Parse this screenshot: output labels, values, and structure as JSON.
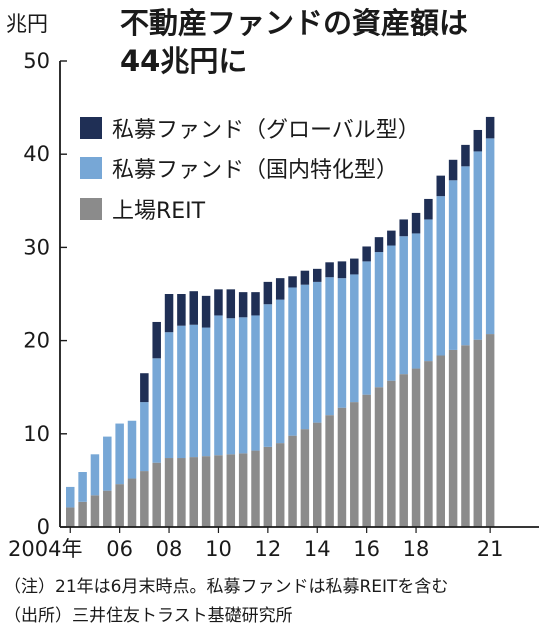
{
  "chart_data": {
    "type": "bar",
    "stacked": true,
    "title_lines": [
      "不動産ファンドの資産額は",
      "44兆円に"
    ],
    "unit_label": "兆円",
    "y_ticks": [
      0,
      10,
      20,
      30,
      40,
      50
    ],
    "ylim": [
      0,
      50
    ],
    "x_tick_labels": [
      {
        "index": 0,
        "label": "2004年"
      },
      {
        "index": 4,
        "label": "06"
      },
      {
        "index": 8,
        "label": "08"
      },
      {
        "index": 12,
        "label": "10"
      },
      {
        "index": 16,
        "label": "12"
      },
      {
        "index": 20,
        "label": "14"
      },
      {
        "index": 24,
        "label": "16"
      },
      {
        "index": 28,
        "label": "18"
      },
      {
        "index": 34,
        "label": "21"
      }
    ],
    "categories": [
      "2004H1",
      "2004H2",
      "2005H1",
      "2005H2",
      "2006H1",
      "2006H2",
      "2007H1",
      "2007H2",
      "2008H1",
      "2008H2",
      "2009H1",
      "2009H2",
      "2010H1",
      "2010H2",
      "2011H1",
      "2011H2",
      "2012H1",
      "2012H2",
      "2013H1",
      "2013H2",
      "2014H1",
      "2014H2",
      "2015H1",
      "2015H2",
      "2016H1",
      "2016H2",
      "2017H1",
      "2017H2",
      "2018H1",
      "2018H2",
      "2019H1",
      "2019H2",
      "2020H1",
      "2020H2",
      "2021H1"
    ],
    "series": [
      {
        "name": "上場REIT",
        "color": "#8b8b8b",
        "values": [
          2.1,
          2.7,
          3.4,
          3.9,
          4.6,
          5.2,
          6.0,
          6.9,
          7.4,
          7.4,
          7.5,
          7.6,
          7.7,
          7.8,
          7.9,
          8.2,
          8.6,
          9.0,
          9.8,
          10.5,
          11.2,
          12.0,
          12.8,
          13.4,
          14.2,
          15.0,
          15.7,
          16.4,
          17.0,
          17.8,
          18.4,
          19.0,
          19.5,
          20.1,
          20.7
        ]
      },
      {
        "name": "私募ファンド（国内特化型）",
        "color": "#77a7d6",
        "values": [
          2.2,
          3.2,
          4.4,
          5.8,
          6.5,
          6.2,
          7.4,
          11.2,
          13.5,
          14.2,
          14.2,
          13.8,
          15.0,
          14.6,
          14.6,
          14.5,
          15.3,
          15.4,
          15.9,
          15.5,
          15.1,
          14.8,
          13.9,
          13.7,
          14.3,
          14.5,
          14.5,
          14.8,
          14.5,
          15.2,
          17.1,
          18.2,
          19.2,
          20.2,
          21.0
        ]
      },
      {
        "name": "私募ファンド（グローバル型）",
        "color": "#1f2f55",
        "values": [
          0,
          0,
          0,
          0,
          0,
          0,
          3.1,
          3.9,
          4.1,
          3.4,
          3.6,
          3.4,
          2.8,
          3.1,
          2.7,
          2.5,
          2.4,
          2.3,
          1.2,
          1.5,
          1.4,
          1.6,
          1.8,
          1.7,
          1.6,
          1.6,
          1.6,
          1.8,
          2.2,
          2.2,
          2.2,
          2.2,
          2.3,
          2.3,
          2.3
        ]
      }
    ],
    "legend": {
      "placement": "top-left",
      "items": [
        {
          "label": "私募ファンド（グローバル型）",
          "color": "#1f2f55"
        },
        {
          "label": "私募ファンド（国内特化型）",
          "color": "#77a7d6"
        },
        {
          "label": "上場REIT",
          "color": "#8b8b8b"
        }
      ]
    },
    "grid": false
  },
  "notes": [
    "（注）21年は6月末時点。私募ファンドは私募REITを含む",
    "（出所）三井住友トラスト基礎研究所"
  ]
}
